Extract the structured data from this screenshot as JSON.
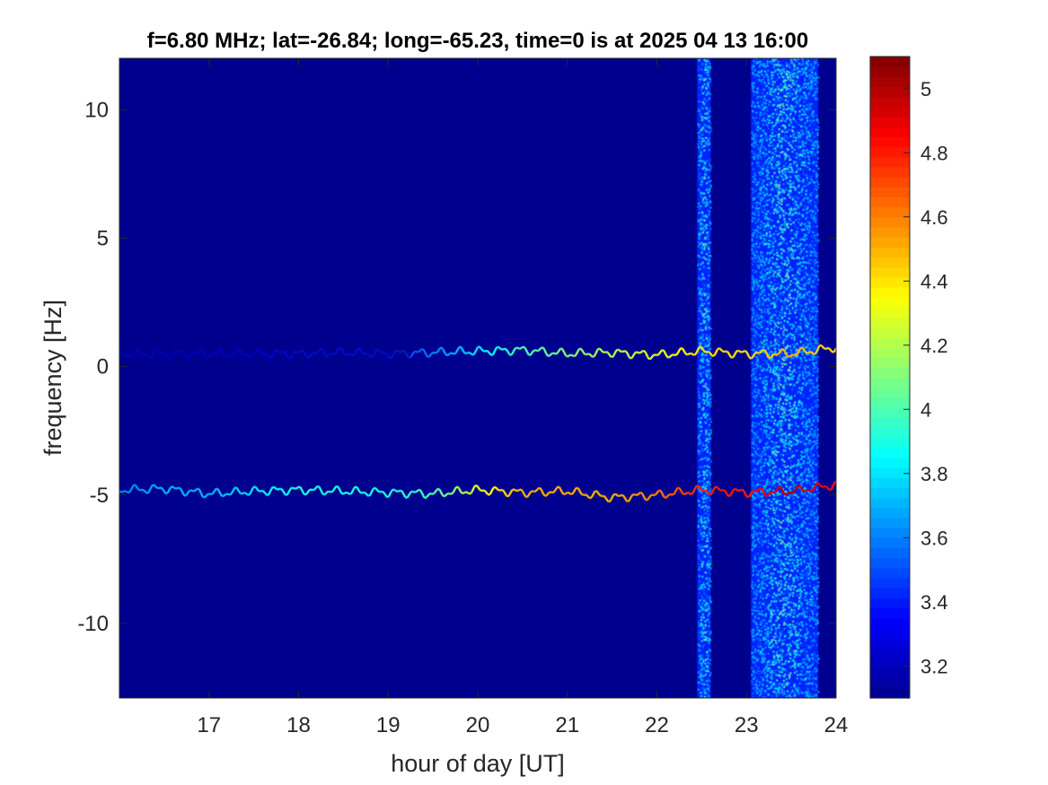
{
  "chart_data": {
    "type": "heatmap",
    "title": "f=6.80 MHz;  lat=-26.84; long=-65.23, time=0 is at 2025 04 13 16:00",
    "xlabel": "hour of day [UT]",
    "ylabel": "frequency [Hz]",
    "xlim": [
      16.0,
      24.0
    ],
    "ylim": [
      -12.9,
      12.0
    ],
    "x_ticks": [
      17,
      18,
      19,
      20,
      21,
      22,
      23,
      24
    ],
    "x_tick_labels": [
      "17",
      "18",
      "19",
      "20",
      "21",
      "22",
      "23",
      "24"
    ],
    "y_ticks": [
      10,
      5,
      0,
      -5,
      -10
    ],
    "y_tick_labels": [
      "10",
      "5",
      "0",
      "-5",
      "-10"
    ],
    "colormap": "jet",
    "background_color": "#00008f",
    "colorbar": {
      "range": [
        3.1,
        5.1
      ],
      "ticks": [
        5,
        4.8,
        4.6,
        4.4,
        4.2,
        4,
        3.8,
        3.6,
        3.4,
        3.2
      ],
      "tick_labels": [
        "5",
        "4.8",
        "4.6",
        "4.4",
        "4.2",
        "4",
        "3.8",
        "3.6",
        "3.4",
        "3.2"
      ]
    },
    "traces": [
      {
        "x": [
          16.0,
          16.5,
          17.0,
          17.5,
          18.0,
          18.5,
          19.0,
          19.5,
          20.0,
          20.5,
          21.0,
          21.5,
          22.0,
          22.5,
          23.0,
          23.5,
          24.0
        ],
        "y": [
          0.5,
          0.5,
          0.5,
          0.5,
          0.5,
          0.55,
          0.5,
          0.55,
          0.6,
          0.65,
          0.5,
          0.55,
          0.45,
          0.6,
          0.5,
          0.5,
          0.75
        ],
        "intensity": [
          3.3,
          3.3,
          3.3,
          3.35,
          3.4,
          3.4,
          3.4,
          3.6,
          3.8,
          4.0,
          4.1,
          4.2,
          4.3,
          4.4,
          4.4,
          4.5,
          4.4
        ]
      },
      {
        "x": [
          16.0,
          16.5,
          17.0,
          17.5,
          18.0,
          18.5,
          19.0,
          19.5,
          20.0,
          20.5,
          21.0,
          21.5,
          22.0,
          22.5,
          23.0,
          23.5,
          24.0
        ],
        "y": [
          -4.8,
          -4.75,
          -4.95,
          -4.85,
          -4.8,
          -4.85,
          -4.9,
          -4.95,
          -4.8,
          -4.9,
          -4.85,
          -5.1,
          -5.0,
          -4.8,
          -4.9,
          -4.85,
          -4.6
        ],
        "intensity": [
          3.6,
          3.7,
          3.7,
          3.8,
          3.9,
          3.9,
          3.9,
          4.0,
          4.3,
          4.5,
          4.5,
          4.5,
          4.6,
          4.8,
          4.8,
          5.0,
          4.8
        ]
      }
    ],
    "noise_bands": [
      {
        "x_range": [
          22.45,
          22.6
        ],
        "level": 3.8
      },
      {
        "x_range": [
          23.05,
          23.8
        ],
        "level": 3.8
      }
    ]
  }
}
